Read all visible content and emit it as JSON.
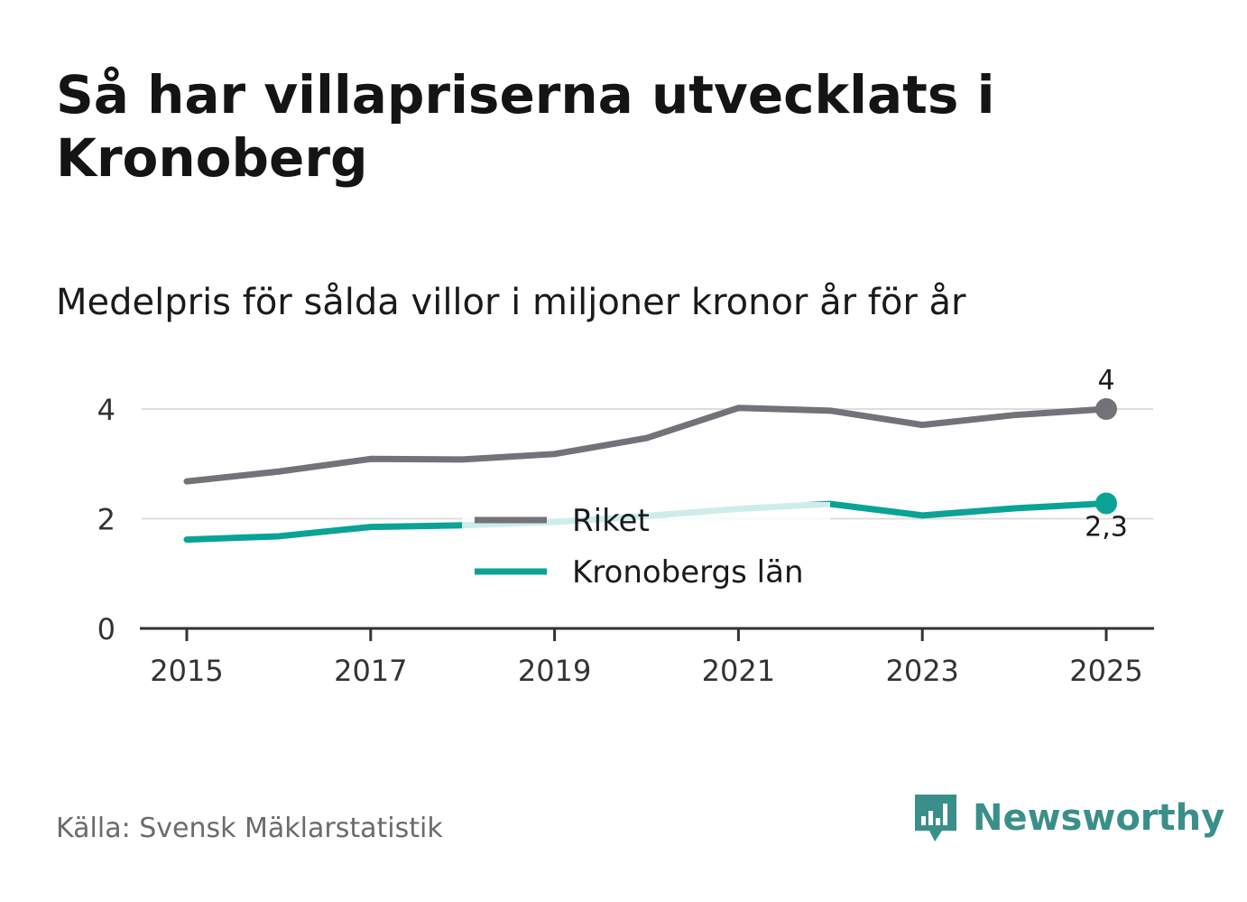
{
  "header": {
    "title": "Så har villapriserna utvecklats i Kronoberg",
    "subtitle": "Medelpris för sålda villor i miljoner kronor år för år"
  },
  "footer": {
    "source": "Källa: Svensk Mäklarstatistik",
    "brand": "Newsworthy"
  },
  "colors": {
    "riket": "#737278",
    "kronoberg": "#0aa396",
    "kronoberg_faded": "#cbeae7",
    "grid": "#dddddd",
    "axis": "#333333",
    "brand": "#3a8f8a"
  },
  "chart_data": {
    "type": "line",
    "title": "Medelpris för sålda villor i miljoner kronor år för år",
    "xlabel": "",
    "ylabel": "",
    "x": [
      2015,
      2016,
      2017,
      2018,
      2019,
      2020,
      2021,
      2022,
      2023,
      2024,
      2025
    ],
    "x_ticks": [
      "2015",
      "2017",
      "2019",
      "2021",
      "2023",
      "2025"
    ],
    "y_ticks": [
      "0",
      "2",
      "4"
    ],
    "ylim": [
      0,
      4.4
    ],
    "grid": true,
    "legend_position": "center",
    "series": [
      {
        "name": "Riket",
        "values": [
          2.68,
          2.86,
          3.09,
          3.08,
          3.18,
          3.47,
          4.02,
          3.97,
          3.71,
          3.89,
          4.0
        ],
        "end_label": "4"
      },
      {
        "name": "Kronobergs län",
        "values": [
          1.62,
          1.68,
          1.85,
          1.88,
          1.94,
          2.05,
          2.18,
          2.27,
          2.06,
          2.19,
          2.28
        ],
        "end_label": "2,3"
      }
    ]
  }
}
